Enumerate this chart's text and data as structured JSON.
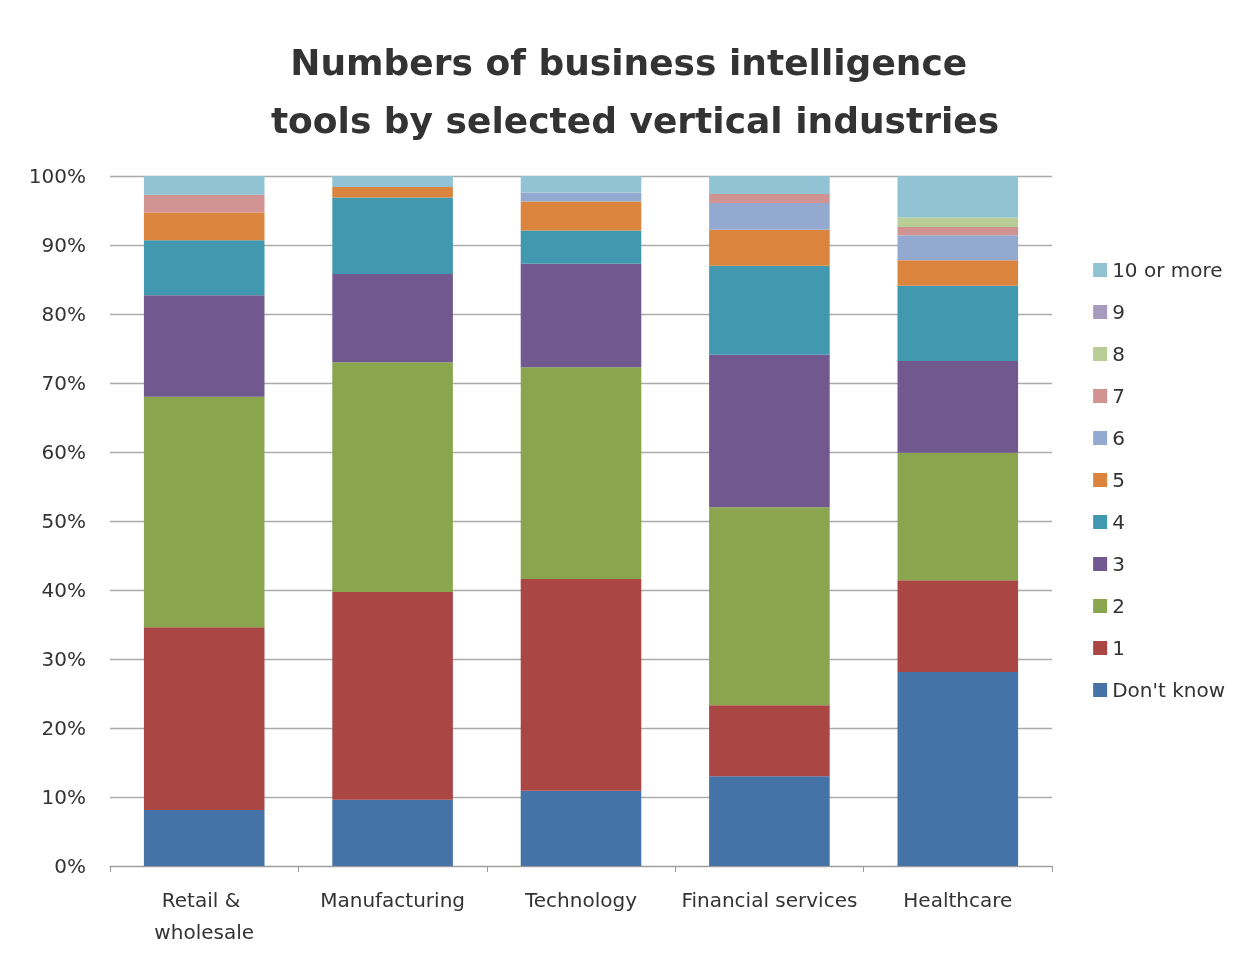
{
  "chart_data": {
    "type": "bar",
    "title": "Numbers of business intelligence tools by selected vertical industries",
    "stacked": true,
    "categories": [
      "Retail & wholesale",
      "Manufacturing",
      "Technology",
      "Financial services",
      "Healthcare"
    ],
    "series": [
      {
        "name": "Don't know",
        "color": "#4572a7",
        "values": [
          8.1,
          9.6,
          10.9,
          13.0,
          28.1
        ]
      },
      {
        "name": "1",
        "color": "#aa4643",
        "values": [
          26.5,
          30.1,
          30.7,
          10.3,
          13.3
        ]
      },
      {
        "name": "2",
        "color": "#89a54e",
        "values": [
          33.4,
          33.3,
          30.7,
          28.7,
          18.5
        ]
      },
      {
        "name": "3",
        "color": "#71588f",
        "values": [
          14.7,
          12.8,
          15.0,
          22.1,
          13.3
        ]
      },
      {
        "name": "4",
        "color": "#4198af",
        "values": [
          8.0,
          11.1,
          4.8,
          12.9,
          10.9
        ]
      },
      {
        "name": "5",
        "color": "#db843d",
        "values": [
          4.0,
          1.5,
          4.2,
          5.2,
          3.7
        ]
      },
      {
        "name": "6",
        "color": "#93a9cf",
        "values": [
          0,
          0,
          1.3,
          3.9,
          3.6
        ]
      },
      {
        "name": "7",
        "color": "#d19392",
        "values": [
          2.6,
          0,
          0,
          1.3,
          1.2
        ]
      },
      {
        "name": "8",
        "color": "#b9cd96",
        "values": [
          0,
          0,
          0,
          0,
          1.4
        ]
      },
      {
        "name": "9",
        "color": "#a99bbd",
        "values": [
          0,
          0,
          0,
          0,
          0
        ]
      },
      {
        "name": "10 or more",
        "color": "#92c3d4",
        "values": [
          2.7,
          1.6,
          2.4,
          2.6,
          6.0
        ]
      }
    ],
    "ylim": [
      0,
      100
    ],
    "yticks": [
      {
        "value": 0,
        "label": "0%"
      },
      {
        "value": 10,
        "label": "10%"
      },
      {
        "value": 20,
        "label": "20%"
      },
      {
        "value": 30,
        "label": "30%"
      },
      {
        "value": 40,
        "label": "40%"
      },
      {
        "value": 50,
        "label": "50%"
      },
      {
        "value": 60,
        "label": "60%"
      },
      {
        "value": 70,
        "label": "70%"
      },
      {
        "value": 80,
        "label": "80%"
      },
      {
        "value": 90,
        "label": "90%"
      },
      {
        "value": 100,
        "label": "100%"
      }
    ],
    "grid": "y",
    "legend": "right"
  }
}
